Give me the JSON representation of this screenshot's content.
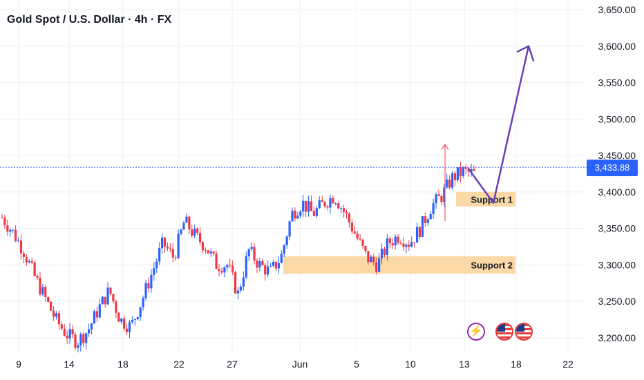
{
  "title": "Gold Spot / U.S. Dollar · 4h · FX",
  "current_price_label": "3,433.88",
  "colors": {
    "up": "#2962ff",
    "down": "#f23645",
    "zone": "#fbd9a6",
    "arrow": "#6a3fb8",
    "price": "#2962ff",
    "grid": "#eef0f3"
  },
  "events": [
    {
      "icon": "lightning-icon",
      "glyph": "⚡"
    },
    {
      "icon": "us-flag-icon"
    },
    {
      "icon": "us-flag-icon"
    }
  ],
  "chart_data": {
    "type": "candlestick",
    "title": "Gold Spot / U.S. Dollar · 4h · FX",
    "symbol": "XAUUSD",
    "timeframe": "4h",
    "x_ticks": [
      "9",
      "14",
      "18",
      "22",
      "27",
      "Jun",
      "5",
      "10",
      "13",
      "18",
      "22"
    ],
    "y_ticks": [
      "3,200.00",
      "3,250.00",
      "3,300.00",
      "3,350.00",
      "3,400.00",
      "3,450.00",
      "3,500.00",
      "3,550.00",
      "3,600.00",
      "3,650.00"
    ],
    "ylim": [
      3190,
      3665
    ],
    "current_price": 3433.88,
    "grid": true,
    "trend_path": [
      3365,
      3345,
      3320,
      3285,
      3255,
      3225,
      3205,
      3195,
      3210,
      3240,
      3265,
      3225,
      3215,
      3250,
      3290,
      3330,
      3310,
      3360,
      3340,
      3325,
      3300,
      3300,
      3260,
      3320,
      3300,
      3290,
      3310,
      3370,
      3385,
      3370,
      3385,
      3395,
      3370,
      3340,
      3310,
      3300,
      3330,
      3340,
      3330,
      3350,
      3380,
      3395,
      3420,
      3428,
      3425
    ],
    "zones": [
      {
        "label": "Support 1",
        "low": 3380,
        "high": 3400
      },
      {
        "label": "Support 2",
        "low": 3288,
        "high": 3312
      }
    ],
    "annotations": {
      "spike_arrow": {
        "from": 3360,
        "to": 3465
      },
      "projection": [
        {
          "day": 13.4,
          "price": 3432
        },
        {
          "day": 15.8,
          "price": 3385
        },
        {
          "day": 19.2,
          "price": 3600
        }
      ]
    }
  }
}
